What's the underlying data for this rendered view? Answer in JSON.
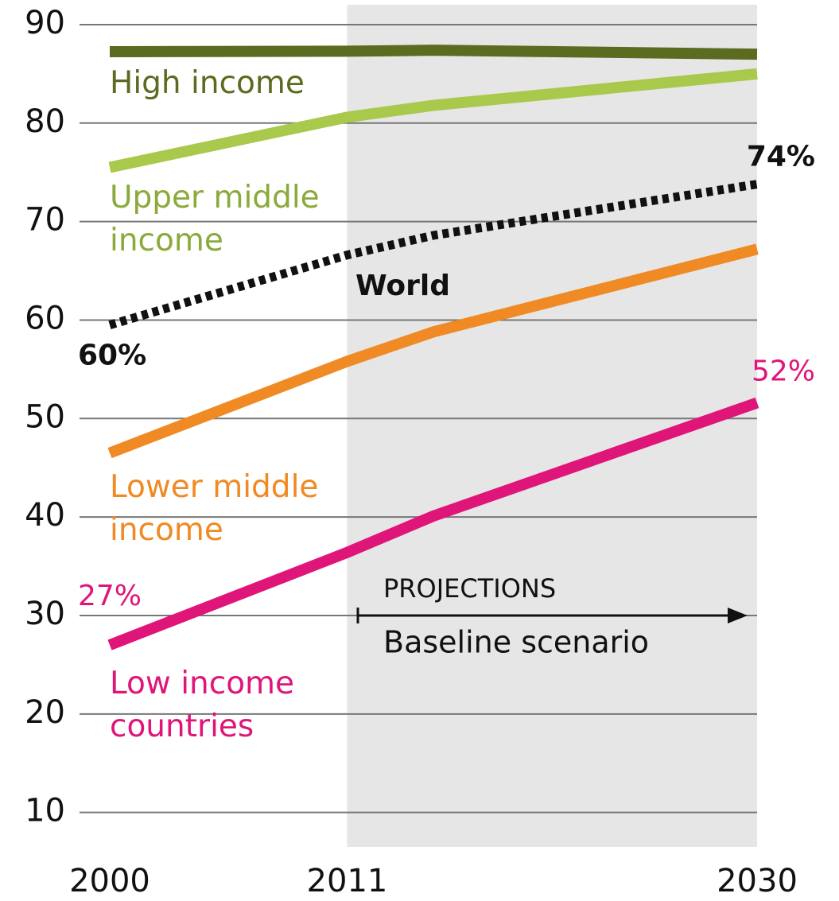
{
  "chart_data": {
    "type": "line",
    "x": [
      2000,
      2011,
      2015,
      2030
    ],
    "xlim": [
      1998.6,
      2030
    ],
    "xticks": [
      2000,
      2011,
      2030
    ],
    "ylim": [
      6.5,
      92.5
    ],
    "yticks": [
      10,
      20,
      30,
      40,
      50,
      60,
      70,
      80,
      90
    ],
    "grid": true,
    "series": [
      {
        "name": "High income",
        "color": "#5b6b1f",
        "label_color": "#5b6b1f",
        "values": [
          87.25,
          87.3,
          87.4,
          87.0
        ]
      },
      {
        "name": "Upper middle income",
        "color": "#a9c94c",
        "label_color": "#8aaa3a",
        "values": [
          75.5,
          80.6,
          81.8,
          85.0
        ]
      },
      {
        "name": "World",
        "color": "#111111",
        "label_color": "#111111",
        "dashed": true,
        "values": [
          59.5,
          66.6,
          68.6,
          73.8
        ],
        "value_labels": [
          "60%",
          null,
          null,
          "74%"
        ]
      },
      {
        "name": "Lower middle income",
        "color": "#f08a24",
        "label_color": "#f08a24",
        "values": [
          46.5,
          55.8,
          58.8,
          67.2
        ]
      },
      {
        "name": "Low income countries",
        "color": "#e0157a",
        "label_color": "#e0157a",
        "values": [
          27.0,
          36.4,
          40.1,
          51.6
        ],
        "value_labels": [
          "27%",
          null,
          null,
          "52%"
        ]
      }
    ],
    "annotations": [
      "PROJECTIONS",
      "Baseline scenario"
    ]
  }
}
